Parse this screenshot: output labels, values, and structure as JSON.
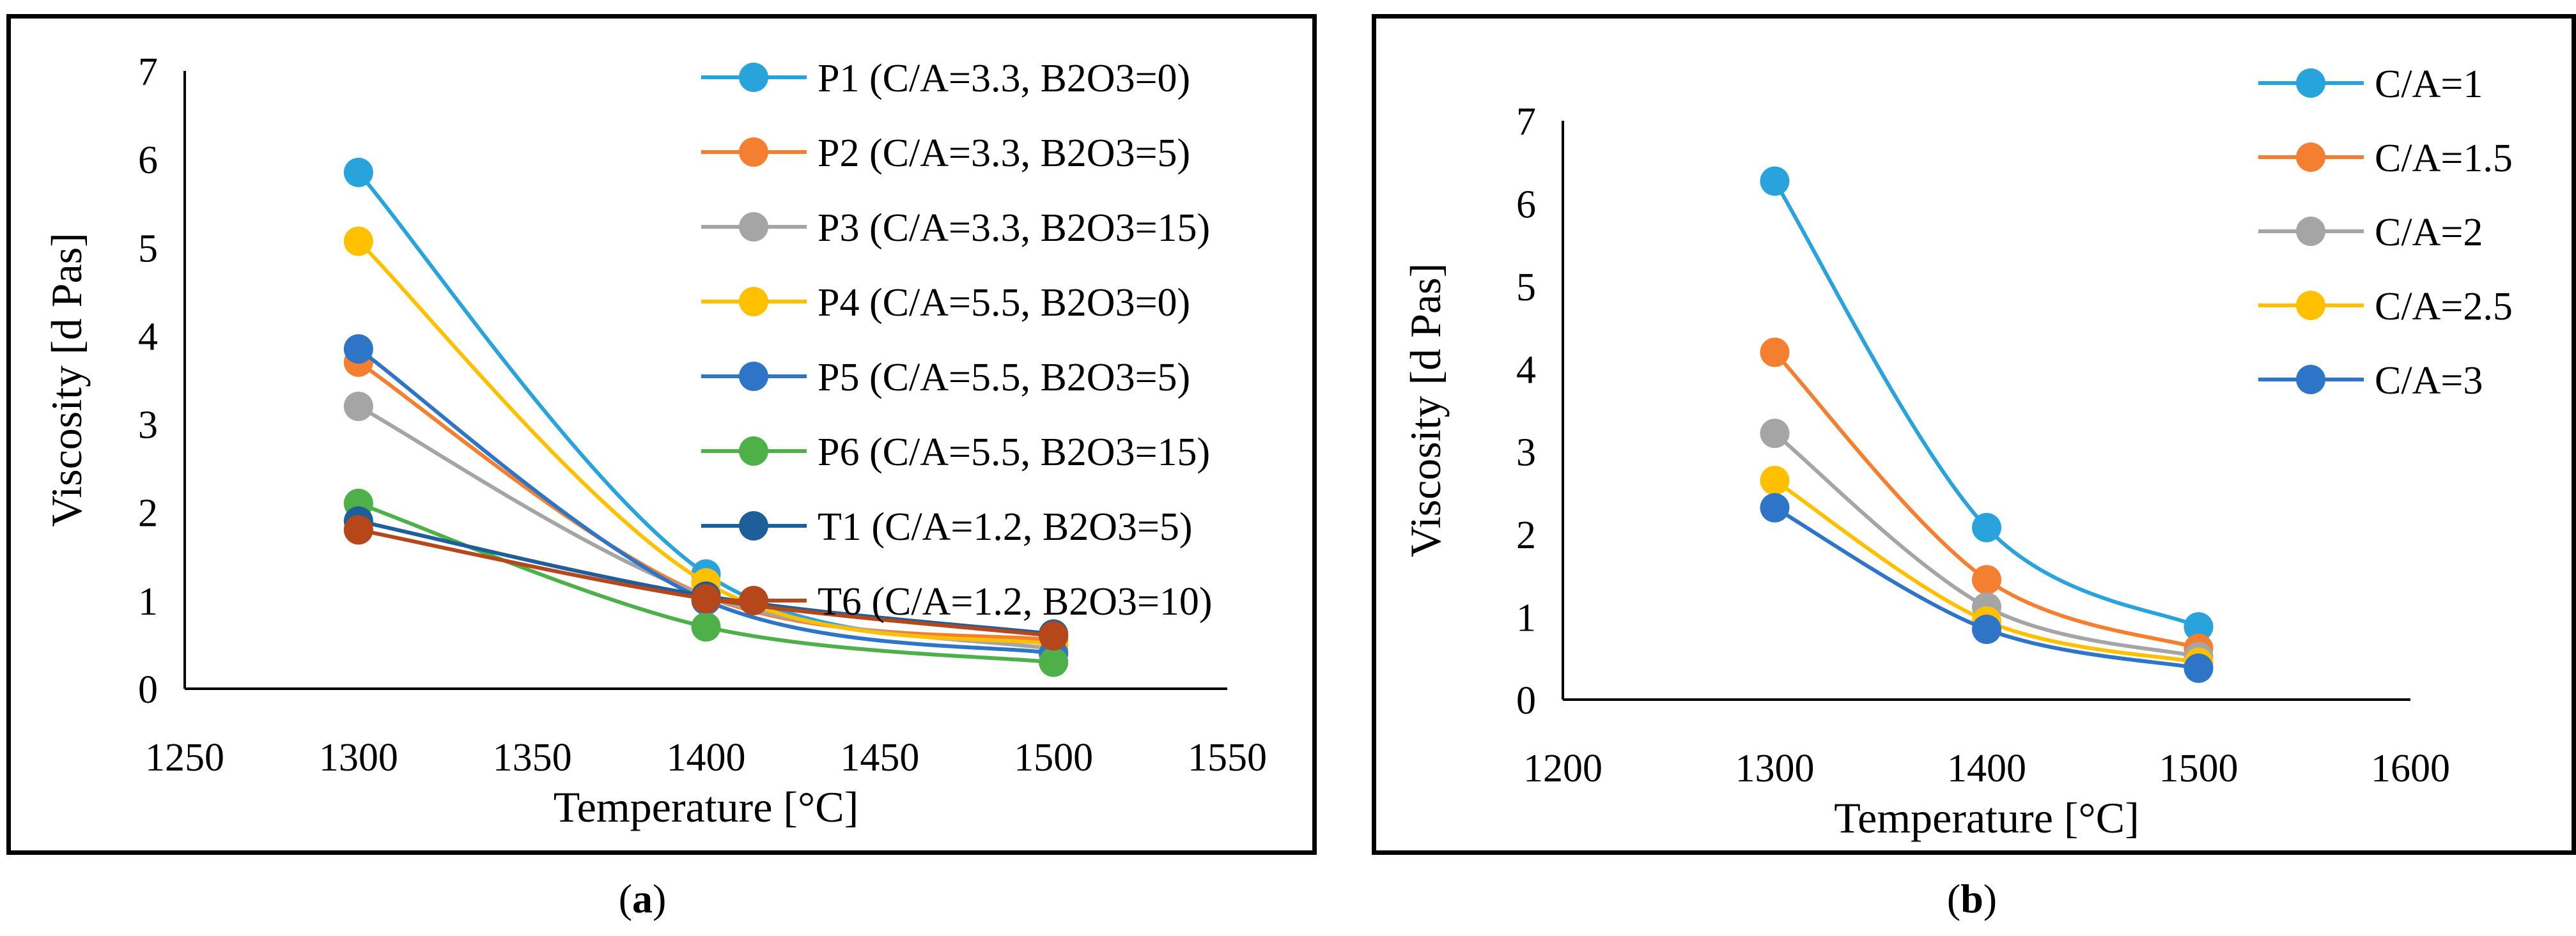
{
  "captions": [
    {
      "open": "(",
      "letter": "a",
      "close": ")"
    },
    {
      "open": "(",
      "letter": "b",
      "close": ")"
    }
  ],
  "chart_data": [
    {
      "type": "line",
      "smooth": true,
      "xlabel": "Temperature [°C]",
      "ylabel": "Viscosity [d Pas]",
      "xlim": [
        1250,
        1550
      ],
      "ylim": [
        0,
        7
      ],
      "xticks": [
        "1250",
        "1300",
        "1350",
        "1400",
        "1450",
        "1500",
        "1550"
      ],
      "yticks": [
        "0",
        "1",
        "2",
        "3",
        "4",
        "5",
        "6",
        "7"
      ],
      "grid": false,
      "legend_position": "top-right",
      "x": [
        1300,
        1400,
        1500
      ],
      "series": [
        {
          "name": "P1 (C/A=3.3, B2O3=0)",
          "color": "#29A3DC",
          "values": [
            5.85,
            1.3,
            0.5
          ]
        },
        {
          "name": "P2 (C/A=3.3, B2O3=5)",
          "color": "#F47F30",
          "values": [
            3.7,
            1.05,
            0.55
          ]
        },
        {
          "name": "P3 (C/A=3.3, B2O3=15)",
          "color": "#A5A5A5",
          "values": [
            3.2,
            1.05,
            0.45
          ]
        },
        {
          "name": "P4 (C/A=5.5, B2O3=0)",
          "color": "#FFC000",
          "values": [
            5.07,
            1.2,
            0.5
          ]
        },
        {
          "name": "P5 (C/A=5.5, B2O3=5)",
          "color": "#2E75C8",
          "values": [
            3.85,
            1.0,
            0.4
          ]
        },
        {
          "name": "P6 (C/A=5.5, B2O3=15)",
          "color": "#4EB048",
          "values": [
            2.1,
            0.7,
            0.3
          ]
        },
        {
          "name": "T1 (C/A=1.2, B2O3=5)",
          "color": "#1F5F99",
          "values": [
            1.9,
            1.05,
            0.62
          ]
        },
        {
          "name": "T6  (C/A=1.2, B2O3=10)",
          "color": "#B5471A",
          "values": [
            1.8,
            1.02,
            0.6
          ]
        }
      ]
    },
    {
      "type": "line",
      "smooth": true,
      "xlabel": "Temperature [°C]",
      "ylabel": "Viscosity [d Pas]",
      "xlim": [
        1200,
        1600
      ],
      "ylim": [
        0,
        7
      ],
      "xticks": [
        "1200",
        "1300",
        "1400",
        "1500",
        "1600"
      ],
      "yticks": [
        "0",
        "1",
        "2",
        "3",
        "4",
        "5",
        "6",
        "7"
      ],
      "grid": false,
      "legend_position": "top-right",
      "x": [
        1300,
        1400,
        1500
      ],
      "series": [
        {
          "name": "C/A=1",
          "color": "#29A3DC",
          "values": [
            6.27,
            2.08,
            0.88
          ]
        },
        {
          "name": "C/A=1.5",
          "color": "#F47F30",
          "values": [
            4.2,
            1.45,
            0.62
          ]
        },
        {
          "name": "C/A=2",
          "color": "#A5A5A5",
          "values": [
            3.22,
            1.12,
            0.52
          ]
        },
        {
          "name": "C/A=2.5",
          "color": "#FFC000",
          "values": [
            2.65,
            0.95,
            0.45
          ]
        },
        {
          "name": "C/A=3",
          "color": "#2E75C8",
          "values": [
            2.32,
            0.85,
            0.38
          ]
        }
      ]
    }
  ]
}
